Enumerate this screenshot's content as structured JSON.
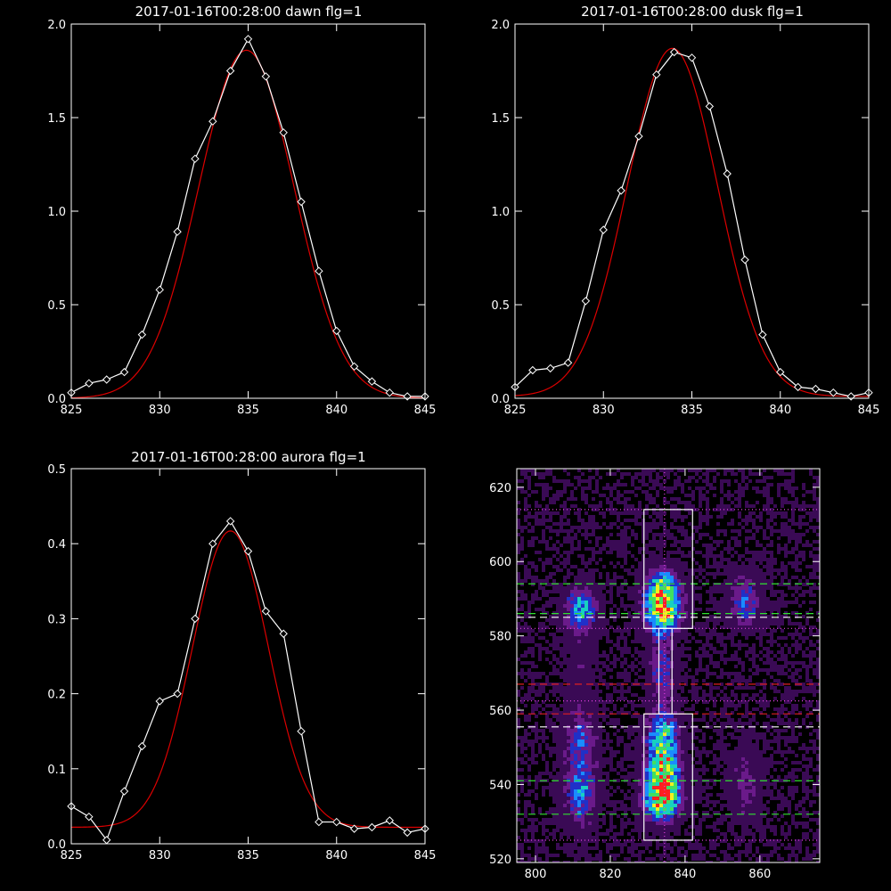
{
  "chart_data": [
    {
      "type": "line",
      "title": "2017-01-16T00:28:00 dawn flg=1",
      "xlim": [
        825,
        845
      ],
      "ylim": [
        0,
        2.0
      ],
      "xticks": [
        825,
        830,
        835,
        840,
        845
      ],
      "yticks": [
        0.0,
        0.5,
        1.0,
        1.5,
        2.0
      ],
      "ytick_labels": [
        "0.0",
        "0.5",
        "1.0",
        "1.5",
        "2.0"
      ],
      "series": [
        {
          "role": "data",
          "color": "#ffffff",
          "marker": "diamond",
          "x": [
            825,
            826,
            827,
            828,
            829,
            830,
            831,
            832,
            833,
            834,
            835,
            836,
            837,
            838,
            839,
            840,
            841,
            842,
            843,
            844,
            845
          ],
          "y": [
            0.03,
            0.08,
            0.1,
            0.14,
            0.34,
            0.58,
            0.89,
            1.28,
            1.48,
            1.75,
            1.92,
            1.72,
            1.42,
            1.05,
            0.68,
            0.36,
            0.17,
            0.09,
            0.03,
            0.01,
            0.01
          ]
        },
        {
          "role": "fit",
          "color": "#dd0000",
          "shape": "gaussian",
          "amplitude": 1.86,
          "center": 834.9,
          "sigma": 2.7,
          "offset": 0.0
        }
      ]
    },
    {
      "type": "line",
      "title": "2017-01-16T00:28:00 dusk flg=1",
      "xlim": [
        825,
        845
      ],
      "ylim": [
        0,
        2.0
      ],
      "xticks": [
        825,
        830,
        835,
        840,
        845
      ],
      "yticks": [
        0.0,
        0.5,
        1.0,
        1.5,
        2.0
      ],
      "ytick_labels": [
        "0.0",
        "0.5",
        "1.0",
        "1.5",
        "2.0"
      ],
      "series": [
        {
          "role": "data",
          "color": "#ffffff",
          "marker": "diamond",
          "x": [
            825,
            826,
            827,
            828,
            829,
            830,
            831,
            832,
            833,
            834,
            835,
            836,
            837,
            838,
            839,
            840,
            841,
            842,
            843,
            844,
            845
          ],
          "y": [
            0.06,
            0.15,
            0.16,
            0.19,
            0.52,
            0.9,
            1.11,
            1.4,
            1.73,
            1.85,
            1.82,
            1.56,
            1.2,
            0.74,
            0.34,
            0.14,
            0.06,
            0.05,
            0.03,
            0.01,
            0.03
          ]
        },
        {
          "role": "fit",
          "color": "#dd0000",
          "shape": "gaussian",
          "amplitude": 1.86,
          "center": 833.9,
          "sigma": 2.55,
          "offset": 0.01
        }
      ]
    },
    {
      "type": "line",
      "title": "2017-01-16T00:28:00 aurora flg=1",
      "xlim": [
        825,
        845
      ],
      "ylim": [
        0,
        0.5
      ],
      "xticks": [
        825,
        830,
        835,
        840,
        845
      ],
      "yticks": [
        0.0,
        0.1,
        0.2,
        0.3,
        0.4,
        0.5
      ],
      "ytick_labels": [
        "0.0",
        "0.1",
        "0.2",
        "0.3",
        "0.4",
        "0.5"
      ],
      "series": [
        {
          "role": "data",
          "color": "#ffffff",
          "marker": "diamond",
          "x": [
            825,
            826,
            827,
            828,
            829,
            830,
            831,
            832,
            833,
            834,
            835,
            836,
            837,
            838,
            839,
            840,
            841,
            842,
            843,
            844,
            845
          ],
          "y": [
            0.05,
            0.036,
            0.005,
            0.07,
            0.13,
            0.19,
            0.2,
            0.3,
            0.4,
            0.43,
            0.39,
            0.31,
            0.28,
            0.15,
            0.029,
            0.029,
            0.02,
            0.022,
            0.031,
            0.015,
            0.02
          ]
        },
        {
          "role": "fit",
          "color": "#dd0000",
          "shape": "gaussian",
          "amplitude": 0.395,
          "center": 834.0,
          "sigma": 2.15,
          "offset": 0.022
        }
      ]
    },
    {
      "type": "heatmap",
      "title": "",
      "xlim": [
        795,
        876
      ],
      "ylim": [
        519,
        625
      ],
      "xticks": [
        800,
        820,
        840,
        860
      ],
      "yticks": [
        520,
        540,
        560,
        580,
        600,
        620
      ],
      "colormap": [
        "#000000",
        "#3a0a55",
        "#6a1a8a",
        "#2030c8",
        "#1a8cff",
        "#18d0c0",
        "#40e060",
        "#f0f020",
        "#ff2020"
      ],
      "blobs": [
        {
          "x": 834,
          "y": 587,
          "sx": 3.2,
          "sy": 4.0,
          "amp": 1.0
        },
        {
          "x": 834,
          "y": 594,
          "sx": 3.0,
          "sy": 3.0,
          "amp": 0.55
        },
        {
          "x": 834,
          "y": 536,
          "sx": 3.3,
          "sy": 4.0,
          "amp": 0.95
        },
        {
          "x": 834,
          "y": 544,
          "sx": 3.0,
          "sy": 4.0,
          "amp": 0.75
        },
        {
          "x": 834,
          "y": 553,
          "sx": 3.0,
          "sy": 4.0,
          "amp": 0.6
        },
        {
          "x": 834,
          "y": 570,
          "sx": 2.4,
          "sy": 7.0,
          "amp": 0.35
        },
        {
          "x": 812,
          "y": 587,
          "sx": 3.0,
          "sy": 4.0,
          "amp": 0.55
        },
        {
          "x": 812,
          "y": 538,
          "sx": 3.0,
          "sy": 6.0,
          "amp": 0.5
        },
        {
          "x": 812,
          "y": 552,
          "sx": 3.0,
          "sy": 5.0,
          "amp": 0.35
        },
        {
          "x": 812,
          "y": 570,
          "sx": 2.5,
          "sy": 8.0,
          "amp": 0.15
        },
        {
          "x": 856,
          "y": 588,
          "sx": 3.0,
          "sy": 3.5,
          "amp": 0.4
        },
        {
          "x": 856,
          "y": 540,
          "sx": 3.0,
          "sy": 7.0,
          "amp": 0.22
        },
        {
          "x": 856,
          "y": 595,
          "sx": 3.0,
          "sy": 3.0,
          "amp": 0.15
        }
      ],
      "overlays": {
        "dotted_magenta_y": [
          614,
          582,
          562.5,
          525
        ],
        "dotted_magenta_x": [
          834.5
        ],
        "dashed_green_y": [
          594,
          586,
          541,
          532
        ],
        "dashed_white_y": [
          585,
          555.5
        ],
        "dashed_red_y": [
          567,
          559
        ],
        "white_boxes": [
          {
            "x0": 829,
            "x1": 842,
            "y0": 582,
            "y1": 614
          },
          {
            "x0": 829,
            "x1": 842,
            "y0": 525,
            "y1": 559
          },
          {
            "x0": 833,
            "x1": 836.5,
            "y0": 559,
            "y1": 582
          }
        ]
      }
    }
  ]
}
